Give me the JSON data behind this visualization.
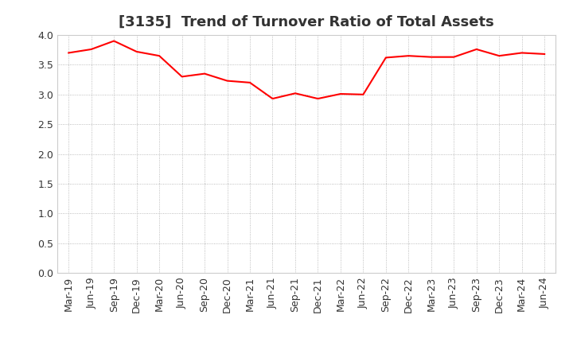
{
  "title": "[3135]  Trend of Turnover Ratio of Total Assets",
  "x_labels": [
    "Mar-19",
    "Jun-19",
    "Sep-19",
    "Dec-19",
    "Mar-20",
    "Jun-20",
    "Sep-20",
    "Dec-20",
    "Mar-21",
    "Jun-21",
    "Sep-21",
    "Dec-21",
    "Mar-22",
    "Jun-22",
    "Sep-22",
    "Dec-22",
    "Mar-23",
    "Jun-23",
    "Sep-23",
    "Dec-23",
    "Mar-24",
    "Jun-24"
  ],
  "y_values": [
    3.7,
    3.76,
    3.9,
    3.72,
    3.65,
    3.3,
    3.35,
    3.23,
    3.2,
    2.93,
    3.02,
    2.93,
    3.01,
    3.0,
    3.62,
    3.65,
    3.63,
    3.63,
    3.76,
    3.65,
    3.7,
    3.68
  ],
  "line_color": "#ff0000",
  "line_width": 1.5,
  "ylim": [
    0.0,
    4.0
  ],
  "yticks": [
    0.0,
    0.5,
    1.0,
    1.5,
    2.0,
    2.5,
    3.0,
    3.5,
    4.0
  ],
  "grid_color": "#aaaaaa",
  "bg_color": "#ffffff",
  "title_fontsize": 13,
  "tick_fontsize": 9,
  "title_color": "#333333"
}
